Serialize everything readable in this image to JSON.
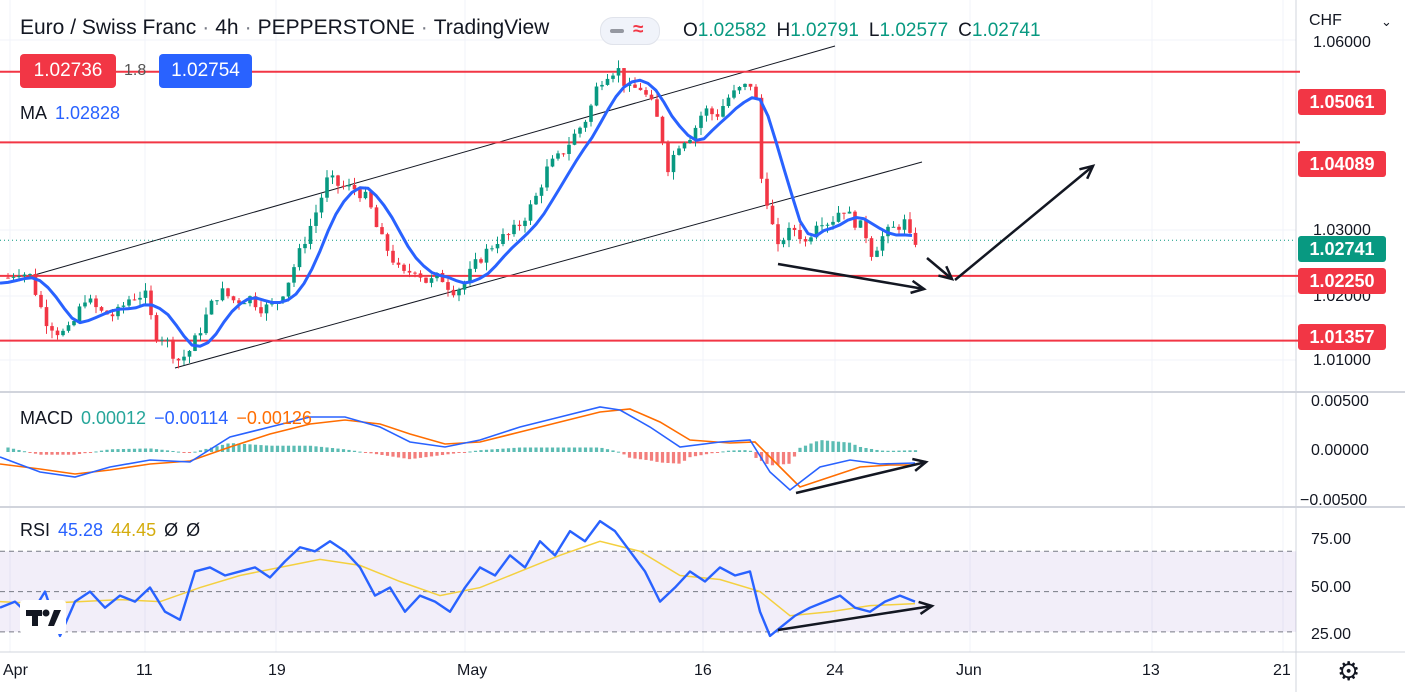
{
  "header": {
    "symbol": "Euro / Swiss Franc",
    "timeframe": "4h",
    "broker": "PEPPERSTONE",
    "source": "TradingView",
    "o_label": "O",
    "o_value": "1.02582",
    "h_label": "H",
    "h_value": "1.02791",
    "l_label": "L",
    "l_value": "1.02577",
    "c_label": "C",
    "c_value": "1.02741",
    "bid": "1.02736",
    "spread": "1.8",
    "ask": "1.02754",
    "currency": "CHF"
  },
  "indicators": {
    "ma": {
      "name": "MA",
      "value": "1.02828"
    },
    "macd": {
      "name": "MACD",
      "hist": "0.00012",
      "macd": "−0.00114",
      "signal": "−0.00126"
    },
    "rsi": {
      "name": "RSI",
      "value": "45.28",
      "ma": "44.45",
      "extra1": "Ø",
      "extra2": "Ø"
    }
  },
  "colors": {
    "up": "#089981",
    "down": "#f23645",
    "level": "#f23645",
    "ma": "#2962ff",
    "macd": "#2962ff",
    "signal": "#ff6d00",
    "rsi": "#2962ff",
    "rsi_ma": "#f4d03f",
    "bid": "#f23645",
    "ask": "#2962ff"
  },
  "chart_data": [
    {
      "type": "candlestick",
      "title": "Euro / Swiss Franc · 4h · PEPPERSTONE",
      "ylim": [
        1.0065,
        1.0605
      ],
      "y_ticks": [
        "1.01000",
        "1.02000",
        "1.03000",
        "1.06000"
      ],
      "x_ticks": [
        "Apr",
        "11",
        "19",
        "May",
        "16",
        "24",
        "Jun",
        "13",
        "21"
      ],
      "current_price": "1.02741",
      "horizontal_levels": [
        "1.05061",
        "1.04089",
        "1.02250",
        "1.01357"
      ],
      "ma_value": "1.02828",
      "grid": true,
      "price_path": [
        [
          0,
          1.0215
        ],
        [
          18,
          1.0232
        ],
        [
          30,
          1.0225
        ],
        [
          45,
          1.0165
        ],
        [
          60,
          1.0145
        ],
        [
          70,
          1.015
        ],
        [
          85,
          1.0195
        ],
        [
          100,
          1.0175
        ],
        [
          115,
          1.017
        ],
        [
          130,
          1.0195
        ],
        [
          145,
          1.02
        ],
        [
          155,
          1.0145
        ],
        [
          165,
          1.014
        ],
        [
          177,
          1.0108
        ],
        [
          188,
          1.0118
        ],
        [
          200,
          1.015
        ],
        [
          210,
          1.0182
        ],
        [
          220,
          1.0205
        ],
        [
          235,
          1.019
        ],
        [
          250,
          1.0195
        ],
        [
          262,
          1.018
        ],
        [
          275,
          1.0185
        ],
        [
          286,
          1.021
        ],
        [
          296,
          1.0245
        ],
        [
          308,
          1.0285
        ],
        [
          318,
          1.032
        ],
        [
          328,
          1.036
        ],
        [
          340,
          1.0348
        ],
        [
          355,
          1.0345
        ],
        [
          368,
          1.033
        ],
        [
          378,
          1.0285
        ],
        [
          390,
          1.0255
        ],
        [
          402,
          1.0225
        ],
        [
          415,
          1.0235
        ],
        [
          428,
          1.0215
        ],
        [
          440,
          1.0225
        ],
        [
          452,
          1.0205
        ],
        [
          462,
          1.021
        ],
        [
          475,
          1.024
        ],
        [
          486,
          1.0258
        ],
        [
          498,
          1.0275
        ],
        [
          510,
          1.0282
        ],
        [
          522,
          1.03
        ],
        [
          535,
          1.033
        ],
        [
          548,
          1.0375
        ],
        [
          560,
          1.039
        ],
        [
          575,
          1.042
        ],
        [
          588,
          1.0445
        ],
        [
          598,
          1.049
        ],
        [
          608,
          1.0505
        ],
        [
          618,
          1.051
        ],
        [
          628,
          1.048
        ],
        [
          640,
          1.0485
        ],
        [
          652,
          1.046
        ],
        [
          660,
          1.043
        ],
        [
          668,
          1.0375
        ],
        [
          680,
          1.041
        ],
        [
          692,
          1.042
        ],
        [
          704,
          1.0455
        ],
        [
          716,
          1.0445
        ],
        [
          728,
          1.047
        ],
        [
          740,
          1.0482
        ],
        [
          752,
          1.049
        ],
        [
          758,
          1.0455
        ],
        [
          762,
          1.0345
        ],
        [
          770,
          1.032
        ],
        [
          776,
          1.0255
        ],
        [
          784,
          1.028
        ],
        [
          795,
          1.029
        ],
        [
          806,
          1.027
        ],
        [
          818,
          1.0305
        ],
        [
          830,
          1.0298
        ],
        [
          842,
          1.032
        ],
        [
          854,
          1.03
        ],
        [
          864,
          1.029
        ],
        [
          872,
          1.0255
        ],
        [
          884,
          1.0282
        ],
        [
          896,
          1.0292
        ],
        [
          906,
          1.03
        ],
        [
          912,
          1.0265
        ],
        [
          916,
          1.0274
        ]
      ]
    },
    {
      "type": "line",
      "title": "MACD",
      "ylim": [
        -0.0055,
        0.006
      ],
      "y_ticks": [
        "0.00500",
        "0.00000",
        "−0.00500"
      ],
      "series": [
        {
          "name": "MACD",
          "values": [
            [
              0,
              -0.0005
            ],
            [
              40,
              -0.002
            ],
            [
              75,
              -0.0025
            ],
            [
              110,
              -0.0015
            ],
            [
              150,
              -0.0008
            ],
            [
              190,
              -0.001
            ],
            [
              230,
              0.0015
            ],
            [
              270,
              0.0025
            ],
            [
              310,
              0.0035
            ],
            [
              345,
              0.0035
            ],
            [
              380,
              0.0025
            ],
            [
              410,
              0.001
            ],
            [
              445,
              0.0005
            ],
            [
              480,
              0.0012
            ],
            [
              520,
              0.0025
            ],
            [
              560,
              0.0035
            ],
            [
              600,
              0.0045
            ],
            [
              620,
              0.0042
            ],
            [
              650,
              0.0025
            ],
            [
              680,
              0.0005
            ],
            [
              720,
              0.001
            ],
            [
              750,
              0.0012
            ],
            [
              770,
              -0.002
            ],
            [
              790,
              -0.0038
            ],
            [
              820,
              -0.0015
            ],
            [
              850,
              -0.0008
            ],
            [
              880,
              -0.0012
            ],
            [
              915,
              -0.0011
            ]
          ]
        },
        {
          "name": "Signal",
          "values": [
            [
              0,
              -0.0012
            ],
            [
              40,
              -0.0017
            ],
            [
              75,
              -0.0022
            ],
            [
              110,
              -0.0018
            ],
            [
              150,
              -0.0012
            ],
            [
              190,
              -0.0009
            ],
            [
              230,
              0.0005
            ],
            [
              270,
              0.0018
            ],
            [
              310,
              0.0028
            ],
            [
              345,
              0.0032
            ],
            [
              380,
              0.0028
            ],
            [
              410,
              0.0018
            ],
            [
              445,
              0.0008
            ],
            [
              480,
              0.001
            ],
            [
              520,
              0.002
            ],
            [
              560,
              0.003
            ],
            [
              600,
              0.004
            ],
            [
              630,
              0.0043
            ],
            [
              660,
              0.003
            ],
            [
              690,
              0.0012
            ],
            [
              730,
              0.0009
            ],
            [
              755,
              0.001
            ],
            [
              780,
              -0.0015
            ],
            [
              800,
              -0.0035
            ],
            [
              830,
              -0.0025
            ],
            [
              860,
              -0.0015
            ],
            [
              890,
              -0.0013
            ],
            [
              915,
              -0.0013
            ]
          ]
        }
      ]
    },
    {
      "type": "line",
      "title": "RSI",
      "ylim": [
        20,
        92
      ],
      "y_ticks": [
        "75.00",
        "50.00",
        "25.00"
      ],
      "bands": [
        30,
        50,
        70
      ],
      "series": [
        {
          "name": "RSI",
          "values": [
            [
              0,
              42
            ],
            [
              15,
              45
            ],
            [
              30,
              38
            ],
            [
              45,
              50
            ],
            [
              60,
              28
            ],
            [
              75,
              45
            ],
            [
              90,
              50
            ],
            [
              105,
              42
            ],
            [
              120,
              48
            ],
            [
              135,
              45
            ],
            [
              150,
              52
            ],
            [
              165,
              40
            ],
            [
              180,
              36
            ],
            [
              195,
              60
            ],
            [
              210,
              62
            ],
            [
              225,
              58
            ],
            [
              240,
              60
            ],
            [
              255,
              62
            ],
            [
              270,
              57
            ],
            [
              285,
              65
            ],
            [
              300,
              72
            ],
            [
              315,
              70
            ],
            [
              330,
              75
            ],
            [
              345,
              70
            ],
            [
              360,
              62
            ],
            [
              375,
              48
            ],
            [
              390,
              52
            ],
            [
              405,
              40
            ],
            [
              420,
              48
            ],
            [
              435,
              45
            ],
            [
              450,
              40
            ],
            [
              465,
              52
            ],
            [
              480,
              62
            ],
            [
              495,
              58
            ],
            [
              510,
              68
            ],
            [
              525,
              62
            ],
            [
              540,
              75
            ],
            [
              555,
              68
            ],
            [
              570,
              80
            ],
            [
              585,
              75
            ],
            [
              600,
              85
            ],
            [
              615,
              80
            ],
            [
              630,
              70
            ],
            [
              645,
              60
            ],
            [
              660,
              45
            ],
            [
              675,
              52
            ],
            [
              690,
              60
            ],
            [
              705,
              55
            ],
            [
              720,
              62
            ],
            [
              735,
              58
            ],
            [
              750,
              60
            ],
            [
              760,
              40
            ],
            [
              770,
              28
            ],
            [
              780,
              32
            ],
            [
              795,
              38
            ],
            [
              810,
              42
            ],
            [
              825,
              45
            ],
            [
              840,
              48
            ],
            [
              855,
              42
            ],
            [
              870,
              40
            ],
            [
              885,
              45
            ],
            [
              900,
              48
            ],
            [
              915,
              45
            ]
          ]
        },
        {
          "name": "RSI MA",
          "values": [
            [
              0,
              45
            ],
            [
              40,
              44
            ],
            [
              80,
              45
            ],
            [
              120,
              46
            ],
            [
              160,
              45
            ],
            [
              200,
              52
            ],
            [
              240,
              58
            ],
            [
              280,
              62
            ],
            [
              320,
              66
            ],
            [
              360,
              63
            ],
            [
              400,
              55
            ],
            [
              440,
              48
            ],
            [
              480,
              52
            ],
            [
              520,
              60
            ],
            [
              560,
              68
            ],
            [
              600,
              75
            ],
            [
              640,
              70
            ],
            [
              680,
              58
            ],
            [
              720,
              56
            ],
            [
              760,
              50
            ],
            [
              790,
              38
            ],
            [
              830,
              40
            ],
            [
              870,
              43
            ],
            [
              915,
              44
            ]
          ]
        }
      ]
    }
  ]
}
